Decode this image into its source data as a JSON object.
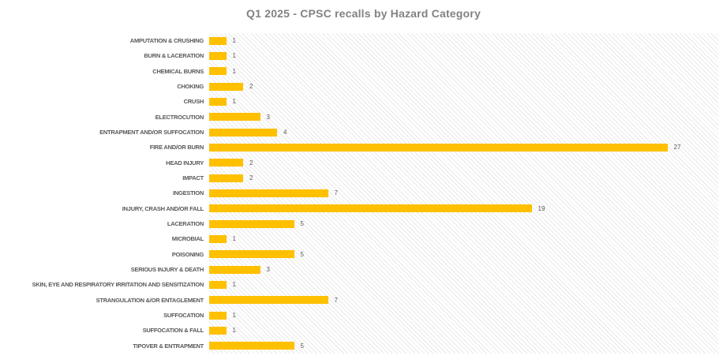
{
  "chart_data": {
    "type": "bar",
    "orientation": "horizontal",
    "title": "Q1 2025 - CPSC recalls by Hazard Category",
    "categories": [
      "AMPUTATION & CRUSHING",
      "BURN & LACERATION",
      "CHEMICAL BURNS",
      "CHOKING",
      "CRUSH",
      "ELECTROCUTION",
      "ENTRAPMENT AND/OR SUFFOCATION",
      "FIRE AND/OR BURN",
      "HEAD INJURY",
      "IMPACT",
      "INGESTION",
      "INJURY, CRASH AND/OR FALL",
      "LACERATION",
      "MICROBIAL",
      "POISONING",
      "SERIOUS INJURY & DEATH",
      "SKIN, EYE AND RESPIRATORY IRRITATION AND SENSITIZATION",
      "STRANGULATION &/OR ENTAGLEMENT",
      "SUFFOCATION",
      "SUFFOCATION & FALL",
      "TIPOVER & ENTRAPMENT"
    ],
    "values": [
      1,
      1,
      1,
      2,
      1,
      3,
      4,
      27,
      2,
      2,
      7,
      19,
      5,
      1,
      5,
      3,
      1,
      7,
      1,
      1,
      5
    ],
    "xlabel": "",
    "ylabel": "",
    "xlim": [
      0,
      30
    ],
    "grid": false,
    "legend": false,
    "data_labels": true,
    "colors": {
      "bar": "#FFC000",
      "title_text": "#828282",
      "category_text": "#595959",
      "value_text": "#595959",
      "plot_hatch": "#e9e9e9",
      "background": "#ffffff"
    }
  }
}
